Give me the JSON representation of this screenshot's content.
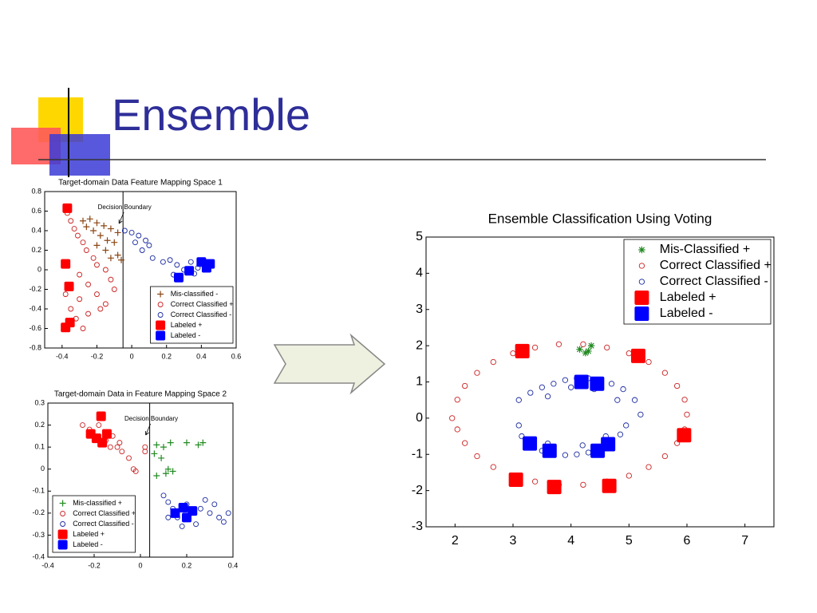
{
  "slide_title": "Ensemble",
  "chart_data": [
    {
      "type": "scatter",
      "title": "Target-domain Data Feature Mapping Space 1",
      "xlim": [
        -0.5,
        0.6
      ],
      "xticks": [
        -0.4,
        -0.2,
        0,
        0.2,
        0.4,
        0.6
      ],
      "ylim": [
        -0.8,
        0.8
      ],
      "yticks": [
        -0.8,
        -0.6,
        -0.4,
        -0.2,
        0,
        0.2,
        0.4,
        0.6,
        0.8
      ],
      "legend": "lower-right",
      "decision_boundary": {
        "x": -0.05,
        "label": "Decision Boundary"
      },
      "series": [
        {
          "name": "Mis-classified -",
          "color": "#8b4513",
          "marker": "plus",
          "x": [
            -0.28,
            -0.24,
            -0.2,
            -0.16,
            -0.12,
            -0.08,
            -0.22,
            -0.18,
            -0.14,
            -0.1,
            -0.2,
            -0.15,
            -0.08,
            -0.12,
            -0.26,
            -0.06
          ],
          "values": [
            0.5,
            0.52,
            0.48,
            0.45,
            0.42,
            0.38,
            0.4,
            0.35,
            0.3,
            0.28,
            0.25,
            0.2,
            0.15,
            0.12,
            0.44,
            0.1
          ]
        },
        {
          "name": "Correct Classified +",
          "color": "#cc2222",
          "marker": "circle",
          "x": [
            -0.37,
            -0.35,
            -0.33,
            -0.31,
            -0.28,
            -0.26,
            -0.22,
            -0.2,
            -0.15,
            -0.12,
            -0.1,
            -0.3,
            -0.25,
            -0.2,
            -0.15,
            -0.3,
            -0.35,
            -0.32,
            -0.25,
            -0.38,
            -0.18,
            -0.28
          ],
          "values": [
            0.58,
            0.5,
            0.42,
            0.35,
            0.28,
            0.2,
            0.12,
            0.05,
            0,
            -0.1,
            -0.2,
            -0.05,
            -0.15,
            -0.25,
            -0.35,
            -0.3,
            -0.4,
            -0.5,
            -0.45,
            -0.25,
            -0.4,
            -0.6
          ]
        },
        {
          "name": "Correct Classified -",
          "color": "#1a2aa0",
          "marker": "circle",
          "x": [
            -0.04,
            0,
            0.04,
            0.08,
            0.1,
            0.02,
            0.06,
            0.12,
            0.18,
            0.22,
            0.26,
            0.3,
            0.34,
            0.38,
            0.42,
            0.46,
            0.24,
            0.36
          ],
          "values": [
            0.4,
            0.38,
            0.35,
            0.3,
            0.25,
            0.28,
            0.2,
            0.12,
            0.08,
            0.1,
            0.05,
            0.0,
            0.08,
            0.02,
            0.06,
            0.04,
            -0.05,
            -0.04
          ]
        },
        {
          "name": "Labeled +",
          "color": "#ff0000",
          "marker": "square",
          "x": [
            -0.37,
            -0.38,
            -0.36,
            -0.355,
            -0.38
          ],
          "values": [
            0.63,
            0.06,
            -0.17,
            -0.54,
            -0.59
          ]
        },
        {
          "name": "Labeled -",
          "color": "#0000ff",
          "marker": "square",
          "x": [
            0.4,
            0.43,
            0.33,
            0.27,
            0.45
          ],
          "values": [
            0.08,
            0.02,
            -0.01,
            -0.08,
            0.06
          ]
        }
      ]
    },
    {
      "type": "scatter",
      "title": "Target-domain Data in Feature Mapping Space 2",
      "xlim": [
        -0.4,
        0.4
      ],
      "xticks": [
        -0.4,
        -0.2,
        0,
        0.2,
        0.4
      ],
      "ylim": [
        -0.4,
        0.3
      ],
      "yticks": [
        -0.4,
        -0.3,
        -0.2,
        -0.1,
        0,
        0.1,
        0.2,
        0.3
      ],
      "legend": "lower-left",
      "decision_boundary": {
        "x": 0.04,
        "label": "Decision Boundary"
      },
      "series": [
        {
          "name": "Mis-classified +",
          "color": "#228b22",
          "marker": "plus",
          "x": [
            0.07,
            0.1,
            0.13,
            0.2,
            0.25,
            0.27,
            0.06,
            0.09,
            0.12,
            0.14,
            0.11,
            0.07
          ],
          "values": [
            0.11,
            0.1,
            0.12,
            0.12,
            0.11,
            0.12,
            0.07,
            0.05,
            0.0,
            -0.01,
            -0.02,
            -0.03
          ]
        },
        {
          "name": "Correct Classified +",
          "color": "#cc2222",
          "marker": "circle",
          "x": [
            -0.25,
            -0.22,
            -0.2,
            -0.15,
            -0.1,
            -0.12,
            -0.08,
            -0.05,
            -0.03,
            -0.02,
            0.02,
            0.02,
            -0.13,
            -0.18,
            -0.09
          ],
          "values": [
            0.2,
            0.18,
            0.15,
            0.13,
            0.1,
            0.15,
            0.08,
            0.05,
            0.0,
            -0.01,
            0.1,
            0.08,
            0.1,
            0.2,
            0.12
          ]
        },
        {
          "name": "Correct Classified -",
          "color": "#1a2aa0",
          "marker": "circle",
          "x": [
            0.1,
            0.12,
            0.14,
            0.16,
            0.2,
            0.22,
            0.26,
            0.3,
            0.34,
            0.38,
            0.24,
            0.18,
            0.28,
            0.32,
            0.12,
            0.36
          ],
          "values": [
            -0.12,
            -0.15,
            -0.18,
            -0.22,
            -0.16,
            -0.2,
            -0.18,
            -0.2,
            -0.22,
            -0.2,
            -0.25,
            -0.26,
            -0.14,
            -0.16,
            -0.22,
            -0.24
          ]
        },
        {
          "name": "Labeled +",
          "color": "#ff0000",
          "marker": "square",
          "x": [
            -0.17,
            -0.215,
            -0.145,
            -0.19,
            -0.165
          ],
          "values": [
            0.24,
            0.16,
            0.16,
            0.14,
            0.12
          ]
        },
        {
          "name": "Labeled -",
          "color": "#0000ff",
          "marker": "square",
          "x": [
            0.185,
            0.225,
            0.15,
            0.2
          ],
          "values": [
            -0.175,
            -0.19,
            -0.2,
            -0.22
          ]
        }
      ]
    },
    {
      "type": "scatter",
      "title": "Ensemble Classification Using Voting",
      "xlim": [
        1.5,
        7.5
      ],
      "xticks": [
        2,
        3,
        4,
        5,
        6,
        7
      ],
      "ylim": [
        -3,
        5
      ],
      "yticks": [
        -3,
        -2,
        -1,
        0,
        1,
        2,
        3,
        4,
        5
      ],
      "legend": "upper-right",
      "series": [
        {
          "name": "Mis-Classified +",
          "color": "#228b22",
          "marker": "star",
          "x": [
            4.15,
            4.3,
            4.35,
            4.25
          ],
          "values": [
            1.9,
            1.85,
            2.0,
            1.8
          ]
        },
        {
          "name": "Correct Classified +",
          "color": "#cc2222",
          "marker": "circle",
          "x": [
            6.0,
            5.96,
            5.83,
            5.62,
            5.34,
            5.0,
            4.62,
            4.21,
            3.79,
            3.38,
            3.0,
            2.66,
            2.38,
            2.17,
            2.04,
            1.95,
            2.04,
            2.17,
            2.38,
            2.66,
            3.0,
            3.38,
            3.79,
            4.21,
            4.62,
            5.0,
            5.34,
            5.62,
            5.83,
            5.96
          ],
          "values": [
            0.1,
            0.51,
            0.89,
            1.25,
            1.55,
            1.79,
            1.95,
            2.04,
            2.04,
            1.95,
            1.79,
            1.55,
            1.25,
            0.89,
            0.51,
            0.0,
            -0.31,
            -0.69,
            -1.05,
            -1.35,
            -1.59,
            -1.75,
            -1.84,
            -1.84,
            -1.75,
            -1.59,
            -1.35,
            -1.05,
            -0.69,
            -0.31
          ]
        },
        {
          "name": "Correct Classified -",
          "color": "#1a2aa0",
          "marker": "circle",
          "x": [
            3.1,
            3.3,
            3.5,
            3.7,
            3.9,
            4.1,
            4.3,
            4.5,
            4.7,
            4.9,
            5.1,
            5.2,
            3.6,
            4.0,
            4.4,
            4.8,
            3.1,
            3.15,
            3.3,
            3.5,
            3.7,
            3.9,
            4.1,
            4.3,
            4.5,
            4.7,
            4.85,
            4.95,
            3.6,
            4.2,
            4.6
          ],
          "values": [
            0.5,
            0.7,
            0.85,
            0.95,
            1.05,
            1.1,
            1.1,
            1.05,
            0.95,
            0.8,
            0.5,
            0.1,
            0.6,
            0.85,
            0.8,
            0.5,
            -0.2,
            -0.5,
            -0.75,
            -0.9,
            -1.0,
            -1.02,
            -1.0,
            -0.95,
            -0.85,
            -0.7,
            -0.45,
            -0.2,
            -0.7,
            -0.75,
            -0.5
          ]
        },
        {
          "name": "Labeled +",
          "color": "#ff0000",
          "marker": "square",
          "x": [
            3.16,
            5.16,
            5.95,
            4.66,
            3.71,
            3.05
          ],
          "values": [
            1.85,
            1.72,
            -0.47,
            -1.87,
            -1.9,
            -1.7
          ]
        },
        {
          "name": "Labeled -",
          "color": "#0000ff",
          "marker": "square",
          "x": [
            4.18,
            4.45,
            3.29,
            3.63,
            4.46,
            4.64
          ],
          "values": [
            1.0,
            0.95,
            -0.7,
            -0.9,
            -0.9,
            -0.72
          ]
        }
      ]
    }
  ]
}
